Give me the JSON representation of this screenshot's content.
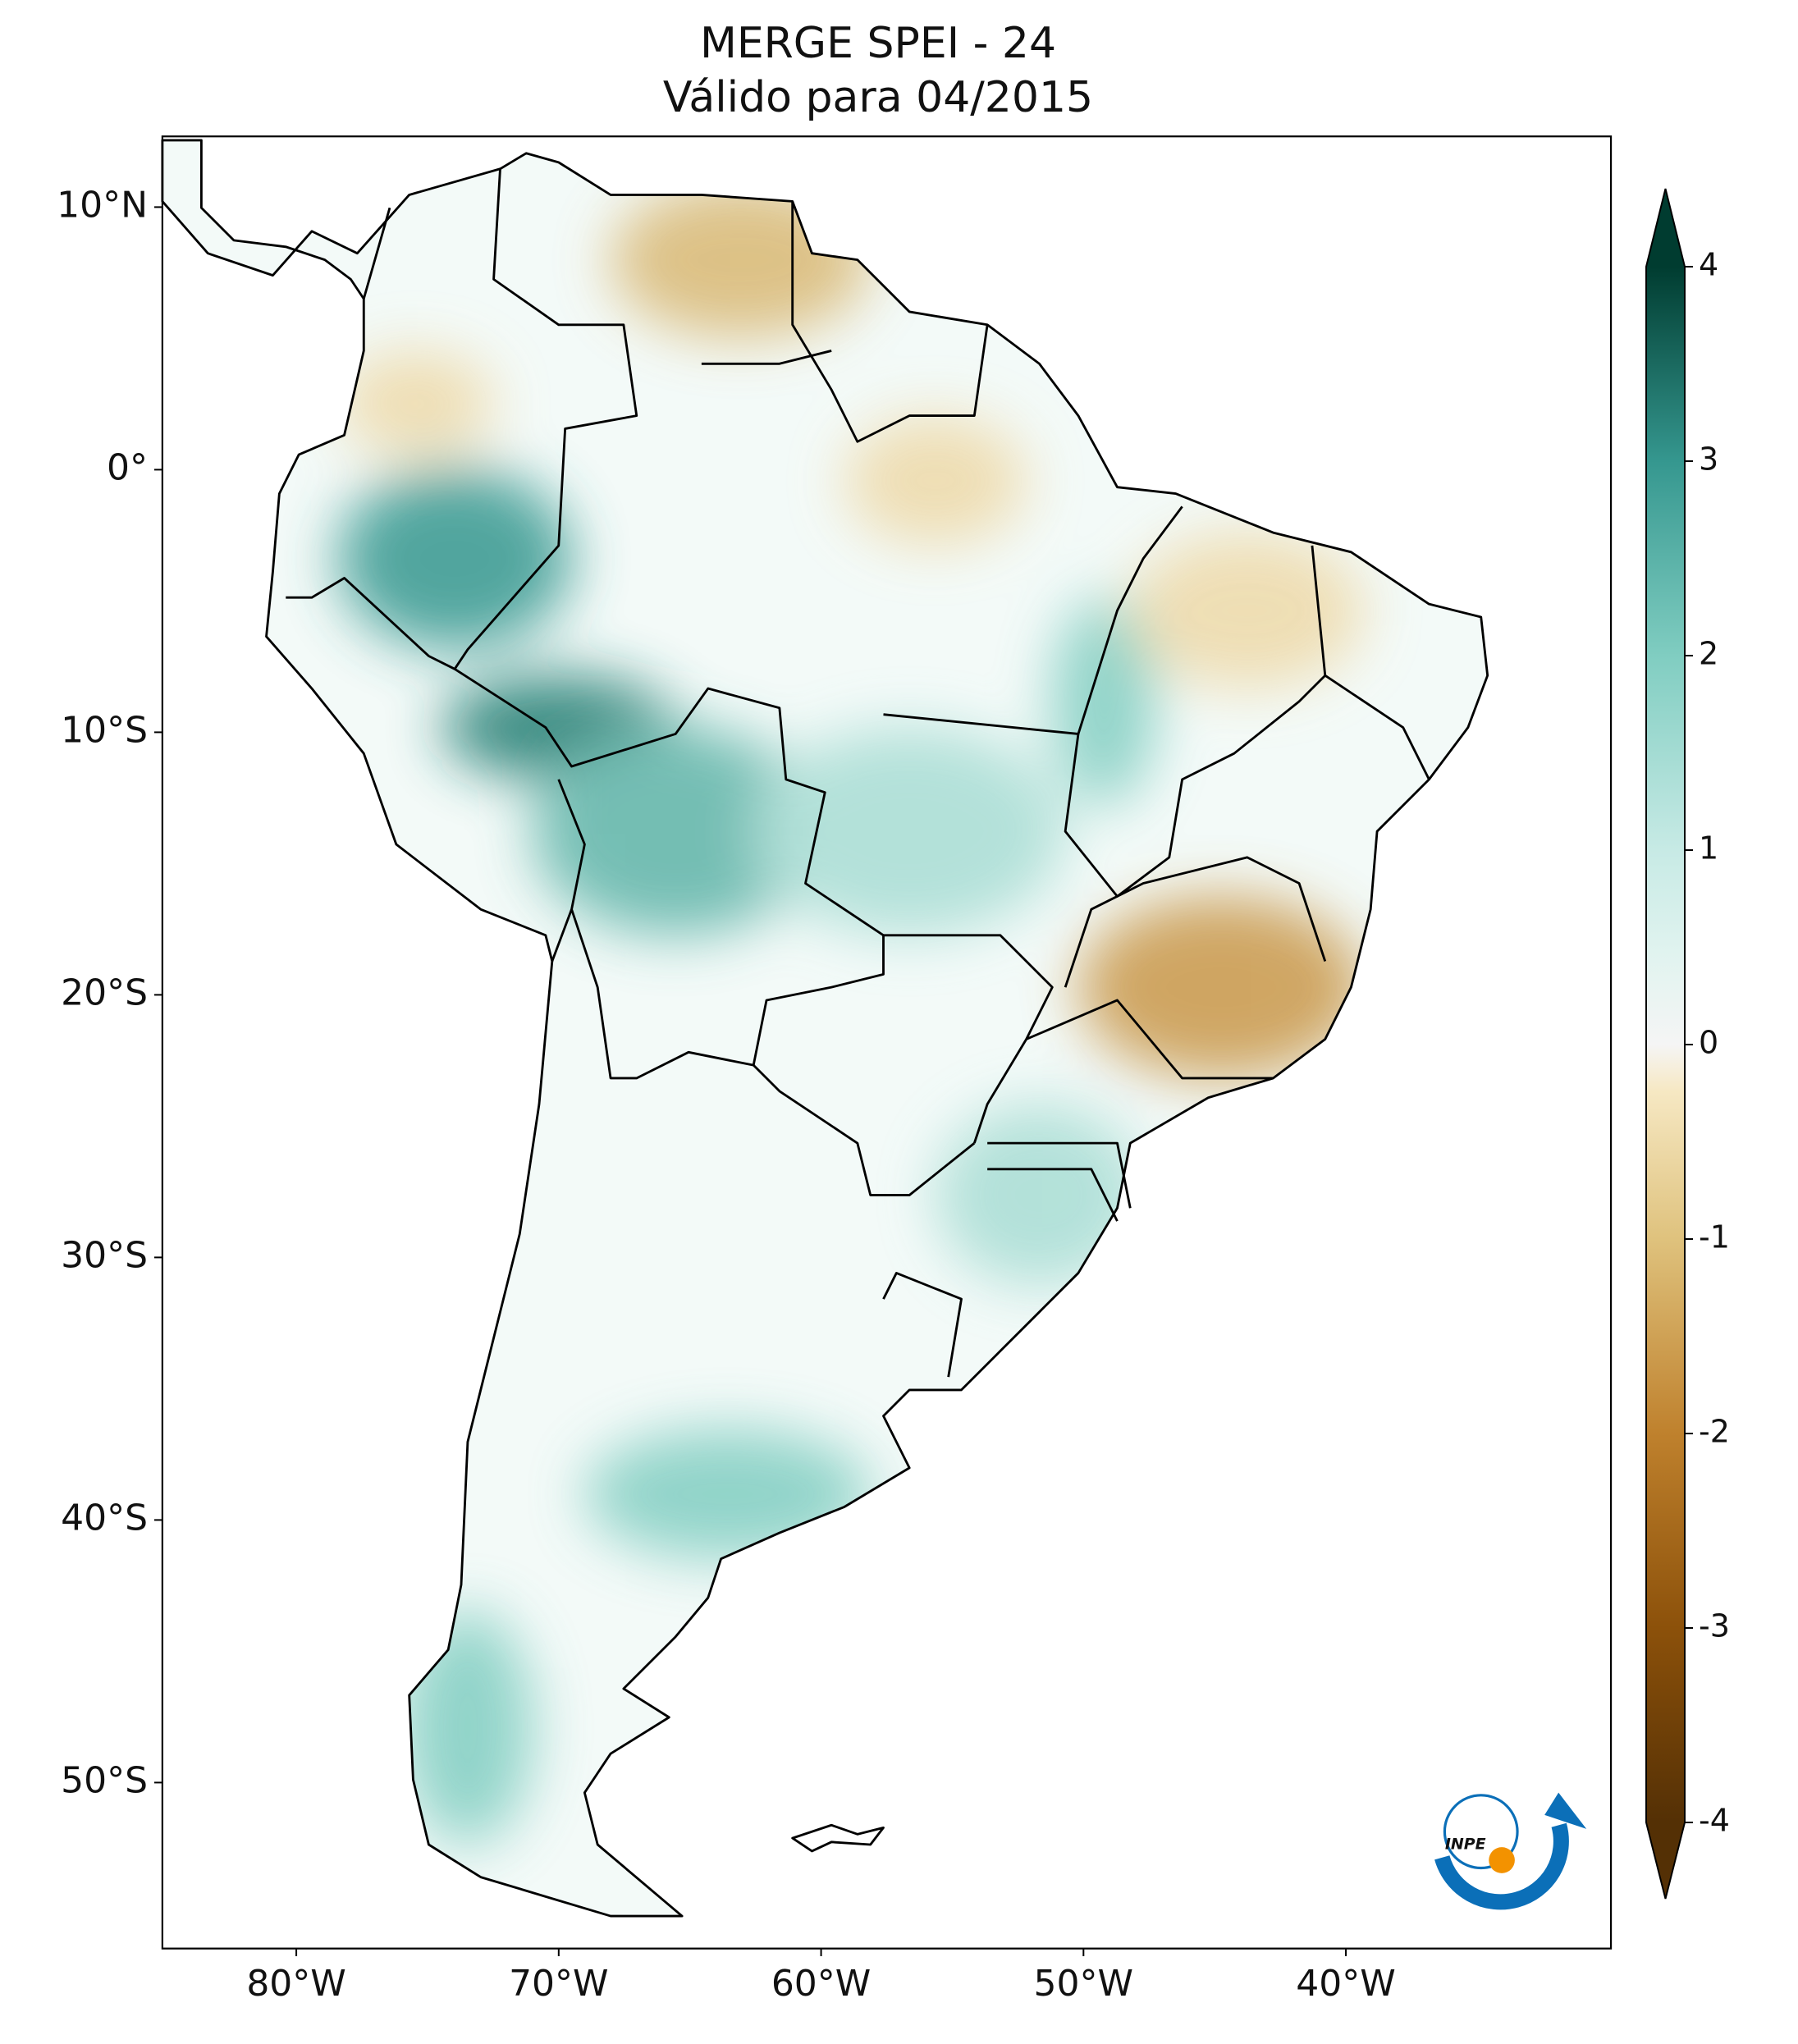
{
  "map": {
    "title": [
      "MERGE   SPEI - 24",
      "Válido para 04/2015"
    ],
    "xlim": [
      -85.1,
      -29.9
    ],
    "ylim": [
      -56.3,
      12.7
    ],
    "xticks": [
      {
        "value": -80,
        "label": "80°W"
      },
      {
        "value": -70,
        "label": "70°W"
      },
      {
        "value": -60,
        "label": "60°W"
      },
      {
        "value": -50,
        "label": "50°W"
      },
      {
        "value": -40,
        "label": "40°W"
      }
    ],
    "yticks": [
      {
        "value": 10,
        "label": "10°N"
      },
      {
        "value": 0,
        "label": "0°"
      },
      {
        "value": -10,
        "label": "10°S"
      },
      {
        "value": -20,
        "label": "20°S"
      },
      {
        "value": -30,
        "label": "30°S"
      },
      {
        "value": -40,
        "label": "40°S"
      },
      {
        "value": -50,
        "label": "50°S"
      }
    ],
    "colorbar": {
      "cmap": "BrBG",
      "range": [
        -4,
        4
      ],
      "ticks": [
        4,
        3,
        2,
        1,
        0,
        -1,
        -2,
        -3,
        -4
      ],
      "extend": "both"
    },
    "logo": "INPE"
  }
}
